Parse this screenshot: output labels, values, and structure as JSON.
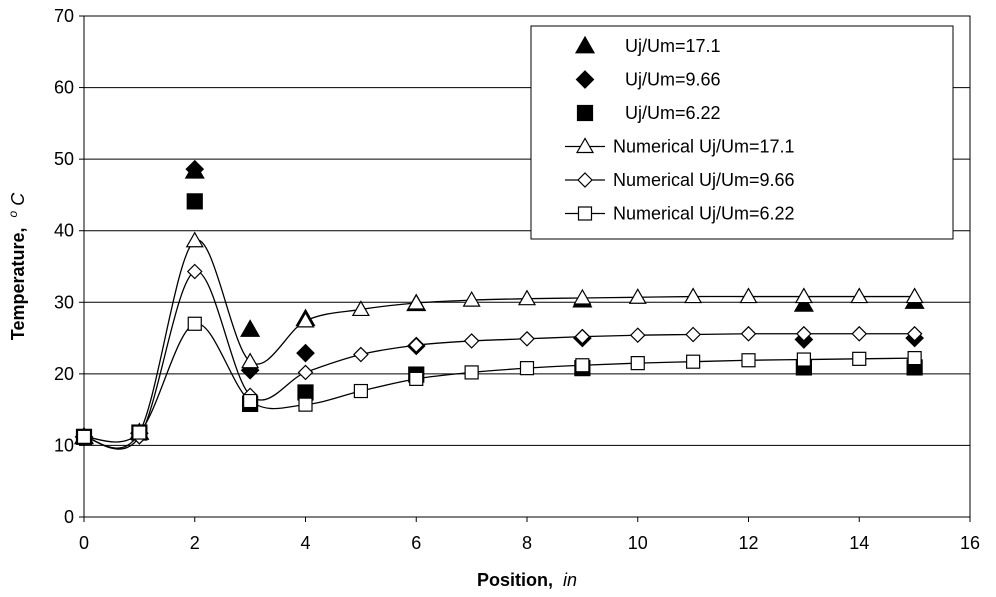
{
  "chart_data": {
    "type": "scatter",
    "xlabel": "Position,",
    "xunit": "in",
    "ylabel": "Temperature,",
    "yunit_sup": "o",
    "yunit": "C",
    "xlim": [
      0,
      16
    ],
    "ylim": [
      0,
      70
    ],
    "xticks": [
      "0",
      "2",
      "4",
      "6",
      "8",
      "10",
      "12",
      "14",
      "16"
    ],
    "yticks": [
      "0",
      "10",
      "20",
      "30",
      "40",
      "50",
      "60",
      "70"
    ],
    "grid": "horizontal",
    "legend_position": "top-right",
    "series": [
      {
        "name": "Uj/Um=17.1",
        "marker": "triangle-filled",
        "line": false,
        "x": [
          0,
          1,
          2,
          3,
          4,
          6,
          9,
          13,
          15
        ],
        "y": [
          11.2,
          11.8,
          48.3,
          26.2,
          27.7,
          29.8,
          30.3,
          29.7,
          30.1
        ]
      },
      {
        "name": "Uj/Um=9.66",
        "marker": "diamond-filled",
        "line": false,
        "x": [
          0,
          1,
          2,
          3,
          4,
          6,
          9,
          13,
          15
        ],
        "y": [
          11.2,
          11.7,
          48.6,
          20.5,
          22.9,
          23.9,
          25.0,
          24.8,
          25.0
        ]
      },
      {
        "name": "Uj/Um=6.22",
        "marker": "square-filled",
        "line": false,
        "x": [
          0,
          1,
          2,
          3,
          4,
          6,
          9,
          13,
          15
        ],
        "y": [
          11.2,
          11.8,
          44.1,
          15.8,
          17.4,
          19.9,
          20.8,
          20.9,
          20.9
        ]
      },
      {
        "name": "Numerical Uj/Um=17.1",
        "marker": "triangle-open",
        "line": true,
        "x": [
          0,
          1,
          2,
          3,
          4,
          5,
          6,
          7,
          8,
          9,
          10,
          11,
          12,
          13,
          14,
          15
        ],
        "y": [
          11.2,
          11.8,
          38.6,
          21.7,
          27.4,
          29.0,
          29.9,
          30.3,
          30.5,
          30.6,
          30.7,
          30.8,
          30.8,
          30.8,
          30.8,
          30.8
        ]
      },
      {
        "name": "Numerical Uj/Um=9.66",
        "marker": "diamond-open",
        "line": true,
        "x": [
          0,
          1,
          2,
          3,
          4,
          5,
          6,
          7,
          8,
          9,
          10,
          11,
          12,
          13,
          14,
          15
        ],
        "y": [
          11.2,
          11.2,
          34.3,
          17.0,
          20.2,
          22.7,
          24.0,
          24.6,
          24.9,
          25.2,
          25.4,
          25.5,
          25.6,
          25.6,
          25.6,
          25.6
        ]
      },
      {
        "name": "Numerical Uj/Um=6.22",
        "marker": "square-open",
        "line": true,
        "x": [
          0,
          1,
          2,
          3,
          4,
          5,
          6,
          7,
          8,
          9,
          10,
          11,
          12,
          13,
          14,
          15
        ],
        "y": [
          11.2,
          11.8,
          27.0,
          16.2,
          15.7,
          17.6,
          19.3,
          20.2,
          20.8,
          21.2,
          21.5,
          21.7,
          21.9,
          22.0,
          22.1,
          22.2
        ]
      }
    ]
  }
}
